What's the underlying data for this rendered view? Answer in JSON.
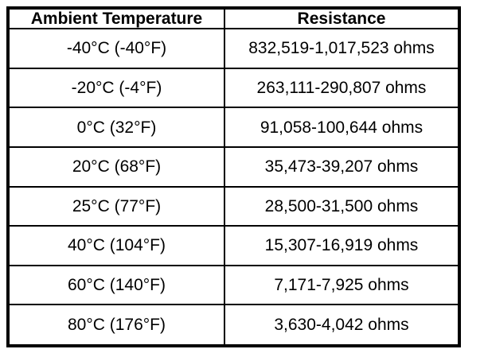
{
  "colors": {
    "background": "#ffffff",
    "border": "#000000",
    "text": "#000000"
  },
  "table": {
    "columns": [
      {
        "label": "Ambient Temperature"
      },
      {
        "label": "Resistance"
      }
    ],
    "rows": [
      {
        "temperature": "-40°C (-40°F)",
        "resistance": "832,519-1,017,523 ohms"
      },
      {
        "temperature": "-20°C (-4°F)",
        "resistance": "263,111-290,807 ohms"
      },
      {
        "temperature": "0°C (32°F)",
        "resistance": "91,058-100,644 ohms"
      },
      {
        "temperature": "20°C (68°F)",
        "resistance": "35,473-39,207 ohms"
      },
      {
        "temperature": "25°C (77°F)",
        "resistance": "28,500-31,500 ohms"
      },
      {
        "temperature": "40°C (104°F)",
        "resistance": "15,307-16,919 ohms"
      },
      {
        "temperature": "60°C (140°F)",
        "resistance": "7,171-7,925 ohms"
      },
      {
        "temperature": "80°C (176°F)",
        "resistance": "3,630-4,042 ohms"
      }
    ]
  }
}
